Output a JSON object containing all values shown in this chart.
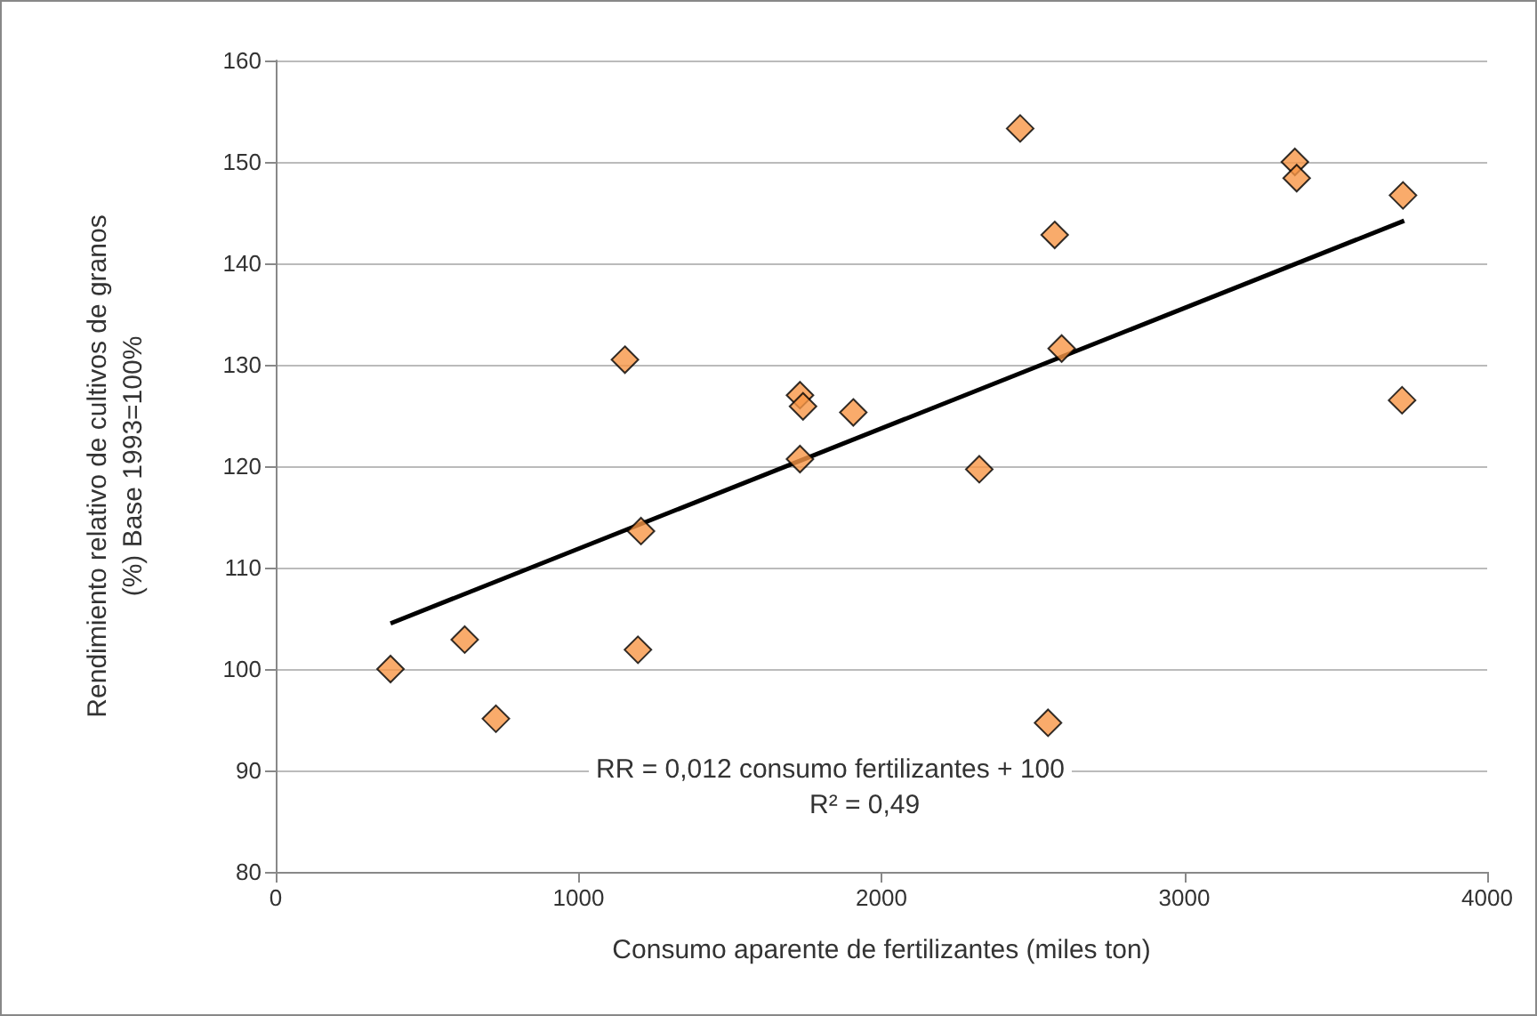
{
  "chart_data": {
    "type": "scatter",
    "xlabel": "Consumo aparente de fertilizantes (miles ton)",
    "ylabel": "Rendimiento relativo de cultivos de granos\n(%) Base 1993=100%",
    "annotations": [
      "RR = 0,012 consumo fertilizantes + 100",
      "R² = 0,49"
    ],
    "xlim": [
      0,
      4000
    ],
    "xticks": [
      0,
      1000,
      2000,
      3000,
      4000
    ],
    "ylim": [
      80,
      160
    ],
    "yticks": [
      80,
      90,
      100,
      110,
      120,
      130,
      140,
      150,
      160
    ],
    "grid": "y",
    "series": [
      {
        "color": "#f79646",
        "marker": "diamond",
        "x": [
          379,
          624,
          727,
          1153,
          1206,
          1196,
          1731,
          1741,
          1731,
          1907,
          2458,
          2572,
          2595,
          2323,
          2550,
          3365,
          3371,
          3722,
          3719
        ],
        "values": [
          100.0,
          102.9,
          95.1,
          130.5,
          113.6,
          101.9,
          127.0,
          125.9,
          120.7,
          125.3,
          153.3,
          142.8,
          131.6,
          119.7,
          94.7,
          150.0,
          148.4,
          146.7,
          126.5
        ]
      },
      {
        "type": "line",
        "color": "#000000",
        "marker": "none",
        "x": [
          379,
          3726
        ],
        "values": [
          104.5,
          144.2
        ]
      }
    ]
  }
}
